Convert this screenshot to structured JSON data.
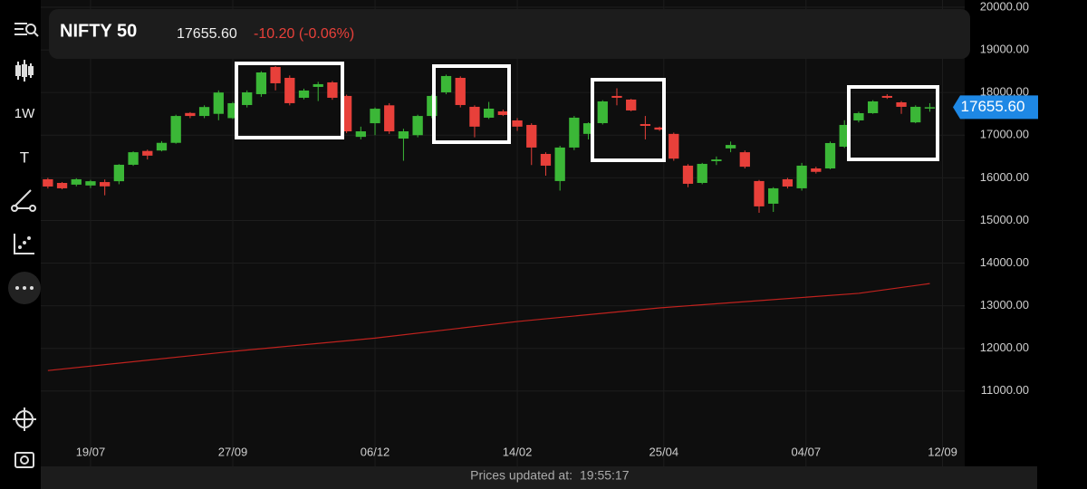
{
  "header": {
    "symbol": "NIFTY 50",
    "change": "-10.20 (-0.06%)"
  },
  "toolbar": {
    "interval": "1W",
    "text_tool": "T"
  },
  "footer": {
    "label": "Prices updated at:",
    "time": "19:55:17"
  },
  "chart_data": {
    "type": "candlestick",
    "last": {
      "value": 17655.6,
      "label": "17655.60"
    },
    "up_color": "#3bb737",
    "down_color": "#e8403a",
    "open": [
      15966,
      15880,
      15840,
      15820,
      15900,
      15920,
      16306,
      16630,
      16640,
      16820,
      17520,
      17450,
      17500,
      17400,
      17707,
      17962,
      18600,
      18344,
      17877,
      18132,
      18238,
      17920,
      16960,
      17280,
      17700,
      16920,
      17000,
      17450,
      18004,
      18344,
      17665,
      17410,
      17558,
      17346,
      17240,
      16560,
      15924,
      16710,
      17030,
      17282,
      17920,
      17835,
      17260,
      17180,
      17030,
      16285,
      15880,
      16390,
      16690,
      16600,
      15924,
      15393,
      15966,
      15754,
      16220,
      16220,
      16730,
      17346,
      17516,
      17920,
      17770,
      17300,
      17640
    ],
    "high": [
      16000,
      15900,
      15990,
      15950,
      15960,
      16320,
      16620,
      16660,
      16860,
      17480,
      17540,
      17700,
      18050,
      17780,
      18050,
      18500,
      18620,
      18400,
      18090,
      18250,
      18270,
      17950,
      17200,
      17650,
      17750,
      17150,
      17480,
      17950,
      18420,
      18380,
      17700,
      17780,
      17600,
      17400,
      17280,
      16600,
      16750,
      17450,
      17300,
      17820,
      18100,
      17850,
      17450,
      17200,
      17060,
      16320,
      16350,
      16500,
      16850,
      16640,
      15950,
      15780,
      16000,
      16350,
      16260,
      16850,
      17350,
      17550,
      17820,
      17960,
      17800,
      17700,
      17750
    ],
    "low": [
      15750,
      15730,
      15800,
      15760,
      15590,
      15850,
      16280,
      16430,
      16620,
      16800,
      17400,
      17400,
      17350,
      17380,
      17650,
      17900,
      18050,
      17700,
      17840,
      17800,
      17830,
      17050,
      16900,
      17000,
      17030,
      16400,
      16950,
      17400,
      17960,
      17650,
      16950,
      17380,
      17450,
      17100,
      16300,
      16050,
      15700,
      16650,
      16900,
      17250,
      17700,
      17560,
      16900,
      17100,
      16400,
      15780,
      15850,
      16300,
      16600,
      16220,
      15180,
      15200,
      15750,
      15700,
      16100,
      16200,
      16700,
      17300,
      17500,
      17850,
      17500,
      17280,
      17550
    ],
    "close": [
      15796,
      15754,
      15966,
      15920,
      15800,
      16306,
      16600,
      16520,
      16820,
      17450,
      17450,
      17660,
      18000,
      17750,
      18004,
      18471,
      18217,
      17750,
      18047,
      18196,
      17877,
      17090,
      17090,
      17620,
      17090,
      17090,
      17450,
      17920,
      18387,
      17707,
      17200,
      17622,
      17474,
      17200,
      16710,
      16285,
      16710,
      17410,
      17280,
      17792,
      17877,
      17580,
      17218,
      17130,
      16450,
      15860,
      16327,
      16430,
      16770,
      16260,
      15330,
      15754,
      15796,
      16285,
      16140,
      16815,
      17240,
      17516,
      17792,
      17877,
      17665,
      17665,
      17656
    ],
    "overlay": {
      "color": "#c0221e",
      "x": [
        0,
        13,
        23,
        33,
        43,
        50,
        57,
        62
      ],
      "values": [
        11480,
        11930,
        12240,
        12630,
        12950,
        13120,
        13290,
        13520
      ]
    },
    "xlim": [
      -0.5,
      63.5
    ],
    "xticks": [
      {
        "value": 3,
        "label": "19/07"
      },
      {
        "value": 13,
        "label": "27/09"
      },
      {
        "value": 23,
        "label": "06/12"
      },
      {
        "value": 33,
        "label": "14/02"
      },
      {
        "value": 43.3,
        "label": "25/04"
      },
      {
        "value": 53.3,
        "label": "04/07"
      },
      {
        "value": 62.9,
        "label": "12/09"
      }
    ],
    "ylim": [
      9870,
      20000
    ],
    "yticks": [
      {
        "value": 11000,
        "label": "11000.00"
      },
      {
        "value": 12000,
        "label": "12000.00"
      },
      {
        "value": 13000,
        "label": "13000.00"
      },
      {
        "value": 14000,
        "label": "14000.00"
      },
      {
        "value": 15000,
        "label": "15000.00"
      },
      {
        "value": 16000,
        "label": "16000.00"
      },
      {
        "value": 17000,
        "label": "17000.00"
      },
      {
        "value": 18000,
        "label": "18000.00"
      },
      {
        "value": 19000,
        "label": "19000.00"
      },
      {
        "value": 20000,
        "label": "20000.00"
      }
    ],
    "grid": true
  }
}
